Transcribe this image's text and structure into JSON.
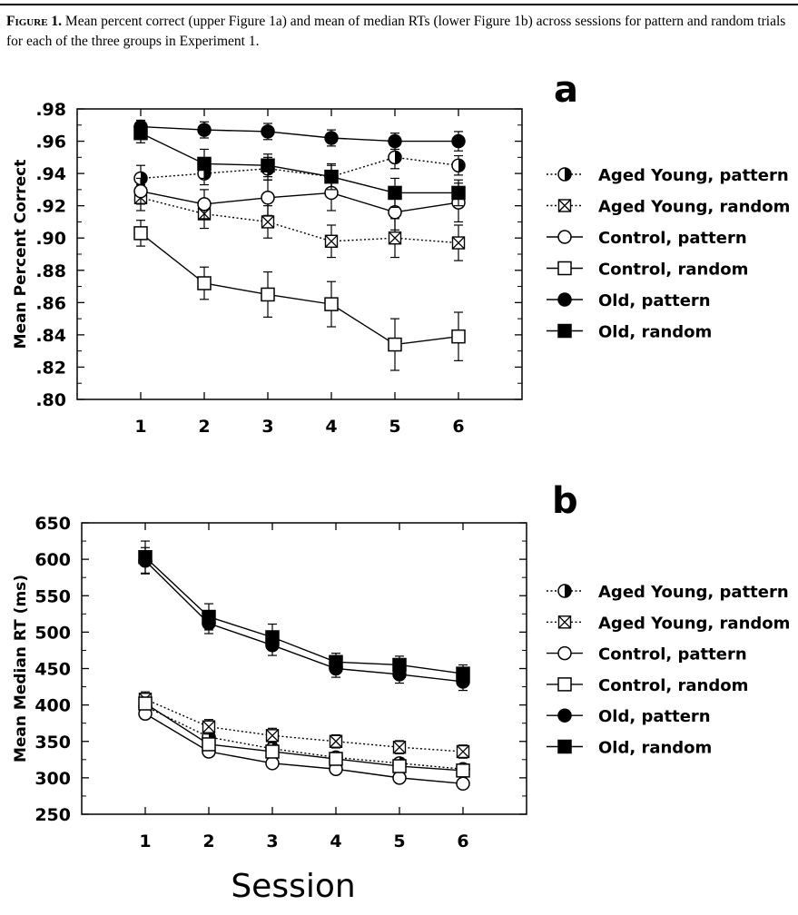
{
  "caption": {
    "figure_label": "Figure",
    "figure_number": "1.",
    "text": "Mean percent correct (upper Figure 1a) and mean of median RTs (lower Figure 1b) across sessions for pattern and random trials for each of the three groups in Experiment 1."
  },
  "shared_xlabel": "Session",
  "chart_data": [
    {
      "type": "line",
      "panel_label": "a",
      "ylabel": "Mean Percent Correct",
      "xlabel": "",
      "x": [
        1,
        2,
        3,
        4,
        5,
        6
      ],
      "xlim": [
        0,
        7
      ],
      "ylim": [
        0.8,
        0.98
      ],
      "yticks": [
        ".80",
        ".82",
        ".84",
        ".86",
        ".88",
        ".90",
        ".92",
        ".94",
        ".96",
        ".98"
      ],
      "ytick_values": [
        0.8,
        0.82,
        0.84,
        0.86,
        0.88,
        0.9,
        0.92,
        0.94,
        0.96,
        0.98
      ],
      "xticks": [
        "1",
        "2",
        "3",
        "4",
        "5",
        "6"
      ],
      "legend_position": "right",
      "series": [
        {
          "name": "Aged Young, pattern",
          "marker": "half-circle",
          "line": "dotted",
          "values": [
            0.937,
            0.94,
            0.943,
            0.938,
            0.95,
            0.945
          ],
          "errors": [
            0.008,
            0.007,
            0.007,
            0.007,
            0.007,
            0.006
          ]
        },
        {
          "name": "Aged Young, random",
          "marker": "x-square",
          "line": "dotted",
          "values": [
            0.925,
            0.915,
            0.91,
            0.898,
            0.9,
            0.897
          ],
          "errors": [
            0.008,
            0.009,
            0.01,
            0.01,
            0.012,
            0.011
          ]
        },
        {
          "name": "Control, pattern",
          "marker": "open-circle",
          "line": "solid",
          "values": [
            0.929,
            0.921,
            0.925,
            0.928,
            0.916,
            0.922
          ],
          "errors": [
            0.008,
            0.009,
            0.011,
            0.011,
            0.011,
            0.012
          ]
        },
        {
          "name": "Control, random",
          "marker": "open-square",
          "line": "solid",
          "values": [
            0.903,
            0.872,
            0.865,
            0.859,
            0.834,
            0.839
          ],
          "errors": [
            0.008,
            0.01,
            0.014,
            0.014,
            0.016,
            0.015
          ]
        },
        {
          "name": "Old, pattern",
          "marker": "filled-circle",
          "line": "solid",
          "values": [
            0.969,
            0.967,
            0.966,
            0.962,
            0.96,
            0.96
          ],
          "errors": [
            0.004,
            0.005,
            0.005,
            0.005,
            0.005,
            0.006
          ]
        },
        {
          "name": "Old, random",
          "marker": "filled-square",
          "line": "solid",
          "values": [
            0.965,
            0.946,
            0.945,
            0.938,
            0.928,
            0.928
          ],
          "errors": [
            0.006,
            0.009,
            0.007,
            0.008,
            0.009,
            0.008
          ]
        }
      ]
    },
    {
      "type": "line",
      "panel_label": "b",
      "ylabel": "Mean Median RT (ms)",
      "xlabel": "",
      "x": [
        1,
        2,
        3,
        4,
        5,
        6
      ],
      "xlim": [
        0,
        7
      ],
      "ylim": [
        250,
        650
      ],
      "yticks": [
        "250",
        "300",
        "350",
        "400",
        "450",
        "500",
        "550",
        "600",
        "650"
      ],
      "ytick_values": [
        250,
        300,
        350,
        400,
        450,
        500,
        550,
        600,
        650
      ],
      "xticks": [
        "1",
        "2",
        "3",
        "4",
        "5",
        "6"
      ],
      "legend_position": "right",
      "series": [
        {
          "name": "Aged Young, pattern",
          "marker": "half-circle",
          "line": "dotted",
          "values": [
            398,
            356,
            340,
            328,
            320,
            312
          ],
          "errors": [
            8,
            8,
            8,
            7,
            7,
            7
          ]
        },
        {
          "name": "Aged Young, random",
          "marker": "x-square",
          "line": "dotted",
          "values": [
            408,
            370,
            358,
            350,
            342,
            336
          ],
          "errors": [
            10,
            10,
            10,
            9,
            9,
            9
          ]
        },
        {
          "name": "Control, pattern",
          "marker": "open-circle",
          "line": "solid",
          "values": [
            388,
            336,
            320,
            312,
            300,
            292
          ],
          "errors": [
            6,
            6,
            6,
            6,
            6,
            6
          ]
        },
        {
          "name": "Control, random",
          "marker": "open-square",
          "line": "solid",
          "values": [
            402,
            346,
            336,
            326,
            316,
            310
          ],
          "errors": [
            7,
            7,
            7,
            7,
            7,
            7
          ]
        },
        {
          "name": "Old, pattern",
          "marker": "filled-circle",
          "line": "solid",
          "values": [
            598,
            512,
            482,
            450,
            442,
            432
          ],
          "errors": [
            18,
            14,
            14,
            12,
            12,
            12
          ]
        },
        {
          "name": "Old, random",
          "marker": "filled-square",
          "line": "solid",
          "values": [
            603,
            521,
            493,
            459,
            455,
            443
          ],
          "errors": [
            22,
            18,
            18,
            12,
            12,
            12
          ]
        }
      ]
    }
  ]
}
